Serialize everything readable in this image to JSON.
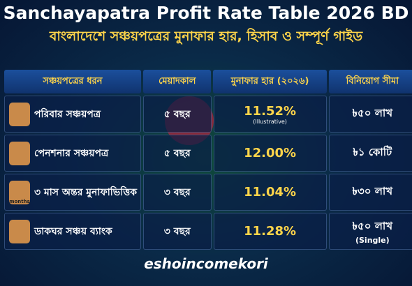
{
  "header": {
    "title": "Sanchayapatra Profit Rate Table 2026 BD",
    "subtitle": "বাংলাদেশে সঞ্চয়পত্রের মুনাফার হার, হিসাব ও সম্পূর্ণ গাইড"
  },
  "table": {
    "columns": [
      "সঞ্চয়পত্রের ধরন",
      "মেয়াদকাল",
      "মুনাফার হার (২০২৬)",
      "বিনিয়োগ সীমা"
    ],
    "rows": [
      {
        "type": "পরিবার সঞ্চয়পত্র",
        "term": "৫ বছর",
        "rate": "11.52%",
        "rate_note": "(Illustrative)",
        "limit": "৳৫০ লাখ"
      },
      {
        "type": "পেনশনার সঞ্চয়পত্র",
        "term": "৫ বছর",
        "rate": "12.00%",
        "limit": "৳১ কোটি"
      },
      {
        "type": "৩ মাস অন্তর মুনাফাভিত্তিক",
        "icon_label": "months",
        "term": "৩ বছর",
        "rate": "11.04%",
        "limit": "৳৩০ লাখ"
      },
      {
        "type": "ডাকঘর সঞ্চয় ব্যাংক",
        "term": "৩ বছর",
        "rate": "11.28%",
        "limit": "৳৫০ লাখ",
        "limit_note": "(Single)"
      }
    ]
  },
  "footer": {
    "brand": "eshoincomekori"
  }
}
